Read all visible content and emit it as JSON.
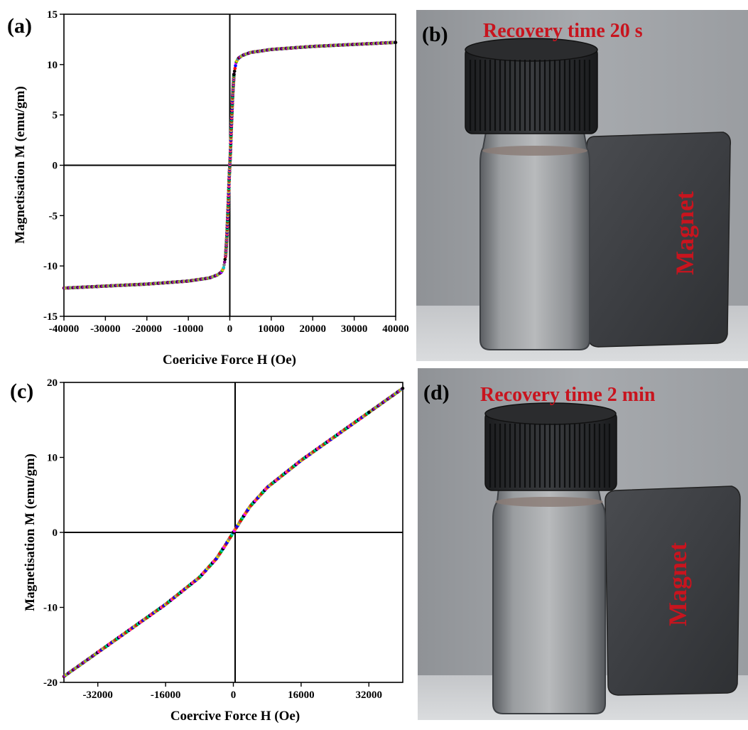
{
  "panels": {
    "a": {
      "letter": "(a)"
    },
    "b": {
      "letter": "(b)",
      "title": "Recovery time 20 s",
      "magnet_label": "Magnet"
    },
    "c": {
      "letter": "(c)"
    },
    "d": {
      "letter": "(d)",
      "title": "Recovery time 2 min",
      "magnet_label": "Magnet"
    }
  },
  "colors": {
    "series": [
      "#000000",
      "#ff0000",
      "#0000ff",
      "#ff00ff",
      "#00a000",
      "#e8d800",
      "#ff8000",
      "#00c8c8",
      "#808080",
      "#800080"
    ],
    "photo_text": "#c8141e"
  },
  "chart_data": [
    {
      "id": "a",
      "type": "line",
      "title": "",
      "xlabel": "Coericive Force H (Oe)",
      "ylabel": "Magnetisation M (emu/gm)",
      "xlim": [
        -40000,
        40000
      ],
      "ylim": [
        -15,
        15
      ],
      "xticks": [
        -40000,
        -30000,
        -20000,
        -10000,
        0,
        10000,
        20000,
        30000,
        40000
      ],
      "yticks": [
        -15,
        -10,
        -5,
        0,
        5,
        10,
        15
      ],
      "grid": false,
      "legend": "none",
      "series": [
        {
          "x": [
            -40000,
            -30000,
            -20000,
            -10000,
            -5000,
            -3000,
            -2000,
            -1500,
            -1000,
            -700,
            -500,
            -300,
            -200,
            -100,
            0,
            100,
            200,
            300,
            500,
            700,
            1000,
            1500,
            2000,
            3000,
            5000,
            10000,
            20000,
            30000,
            40000
          ],
          "y": [
            -12.2,
            -12.0,
            -11.8,
            -11.5,
            -11.2,
            -10.9,
            -10.6,
            -10.2,
            -9.0,
            -7.0,
            -5.0,
            -3.0,
            -1.8,
            -0.8,
            0,
            0.8,
            1.8,
            3.0,
            5.0,
            7.0,
            9.0,
            10.2,
            10.6,
            10.9,
            11.2,
            11.5,
            11.8,
            12.0,
            12.2
          ]
        }
      ]
    },
    {
      "id": "c",
      "type": "line",
      "title": "",
      "xlabel": "Coercive Force H (Oe)",
      "ylabel": "Magnetisation M (emu/gm)",
      "xlim": [
        -40000,
        40000
      ],
      "ylim": [
        -20,
        20
      ],
      "xticks": [
        -32000,
        -16000,
        0,
        16000,
        32000
      ],
      "yticks": [
        -20,
        -10,
        0,
        10,
        20
      ],
      "grid": false,
      "legend": "none",
      "series": [
        {
          "x": [
            -40000,
            -32000,
            -24000,
            -16000,
            -8000,
            -4000,
            -2000,
            0,
            2000,
            4000,
            8000,
            16000,
            24000,
            32000,
            40000
          ],
          "y": [
            -19.2,
            -16.0,
            -12.8,
            -9.6,
            -6.0,
            -3.5,
            -1.8,
            0,
            1.8,
            3.5,
            6.0,
            9.6,
            12.8,
            16.0,
            19.2
          ]
        }
      ]
    }
  ]
}
